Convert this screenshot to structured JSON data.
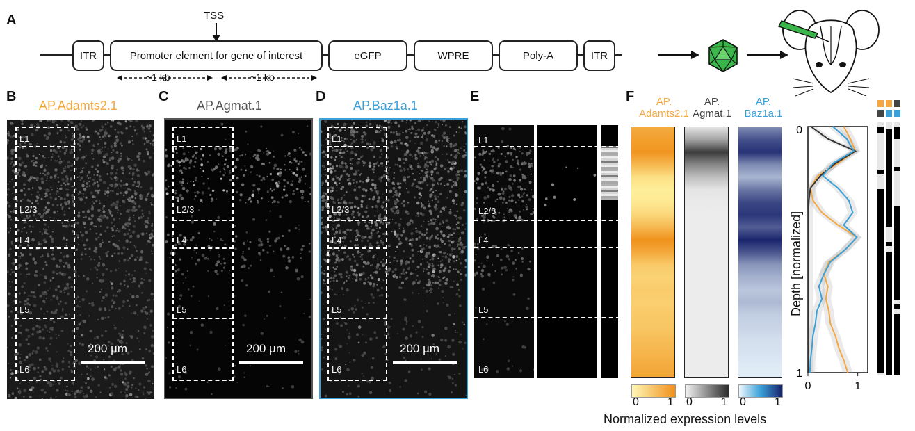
{
  "panelA": {
    "letter": "A",
    "tss_label": "TSS",
    "elements": [
      "ITR",
      "Promoter element for gene of interest",
      "eGFP",
      "WPRE",
      "Poly-A",
      "ITR"
    ],
    "kb_left": "~1 kb",
    "kb_right": "~1 kb"
  },
  "panels": {
    "B": {
      "letter": "B",
      "title": "AP.Adamts2.1",
      "color": "#f5a742"
    },
    "C": {
      "letter": "C",
      "title": "AP.Agmat.1",
      "color": "#555555"
    },
    "D": {
      "letter": "D",
      "title": "AP.Baz1a.1",
      "color": "#3aa0d8"
    },
    "E": {
      "letter": "E"
    },
    "F": {
      "letter": "F"
    }
  },
  "layers": [
    "L1",
    "L2/3",
    "L4",
    "L5",
    "L6"
  ],
  "scale_bar": "200 µm",
  "heatmaps": [
    {
      "label_line1": "AP.",
      "label_line2": "Adamts2.1",
      "color": "#f5a742",
      "low": "#fff3a0",
      "high": "#f0901a"
    },
    {
      "label_line1": "AP.",
      "label_line2": "Agmat.1",
      "color": "#444444",
      "low": "#eeeeee",
      "high": "#333333"
    },
    {
      "label_line1": "AP.",
      "label_line2": "Baz1a.1",
      "color": "#3aa0d8",
      "low": "#e8f4fc",
      "high": "#16226a"
    }
  ],
  "colorbar_ticks": [
    "0",
    "1"
  ],
  "colorbar_title": "Normalized expression levels",
  "chart_data": {
    "type": "line",
    "ylabel": "Depth [normalized]",
    "xlim": [
      0,
      1.2
    ],
    "ylim": [
      0,
      1
    ],
    "xticks": [
      "0",
      "1"
    ],
    "yticks": [
      "0",
      "1"
    ],
    "y_inverted": true,
    "grid": false,
    "depth": [
      0,
      0.05,
      0.1,
      0.15,
      0.2,
      0.25,
      0.3,
      0.35,
      0.4,
      0.45,
      0.5,
      0.55,
      0.6,
      0.65,
      0.7,
      0.75,
      0.8,
      0.85,
      0.9,
      0.95,
      1
    ],
    "series": [
      {
        "color": "#f5a742",
        "values": [
          0.72,
          0.85,
          0.95,
          0.6,
          0.2,
          0.05,
          0.1,
          0.28,
          0.6,
          0.98,
          0.75,
          0.42,
          0.32,
          0.4,
          0.36,
          0.42,
          0.45,
          0.55,
          0.62,
          0.72,
          0.8
        ]
      },
      {
        "color": "#333333",
        "values": [
          0.06,
          0.4,
          0.95,
          0.55,
          0.25,
          0.05,
          0.02,
          0.01,
          0.01,
          0.01,
          0.01,
          0.01,
          0.01,
          0.01,
          0.01,
          0.01,
          0.01,
          0.01,
          0.01,
          0.01,
          0.01
        ]
      },
      {
        "color": "#3aa0d8",
        "values": [
          0.5,
          0.78,
          0.92,
          0.5,
          0.3,
          0.6,
          0.82,
          0.9,
          0.72,
          0.98,
          0.75,
          0.45,
          0.32,
          0.22,
          0.28,
          0.18,
          0.15,
          0.1,
          0.08,
          0.05,
          0.04
        ]
      }
    ]
  }
}
